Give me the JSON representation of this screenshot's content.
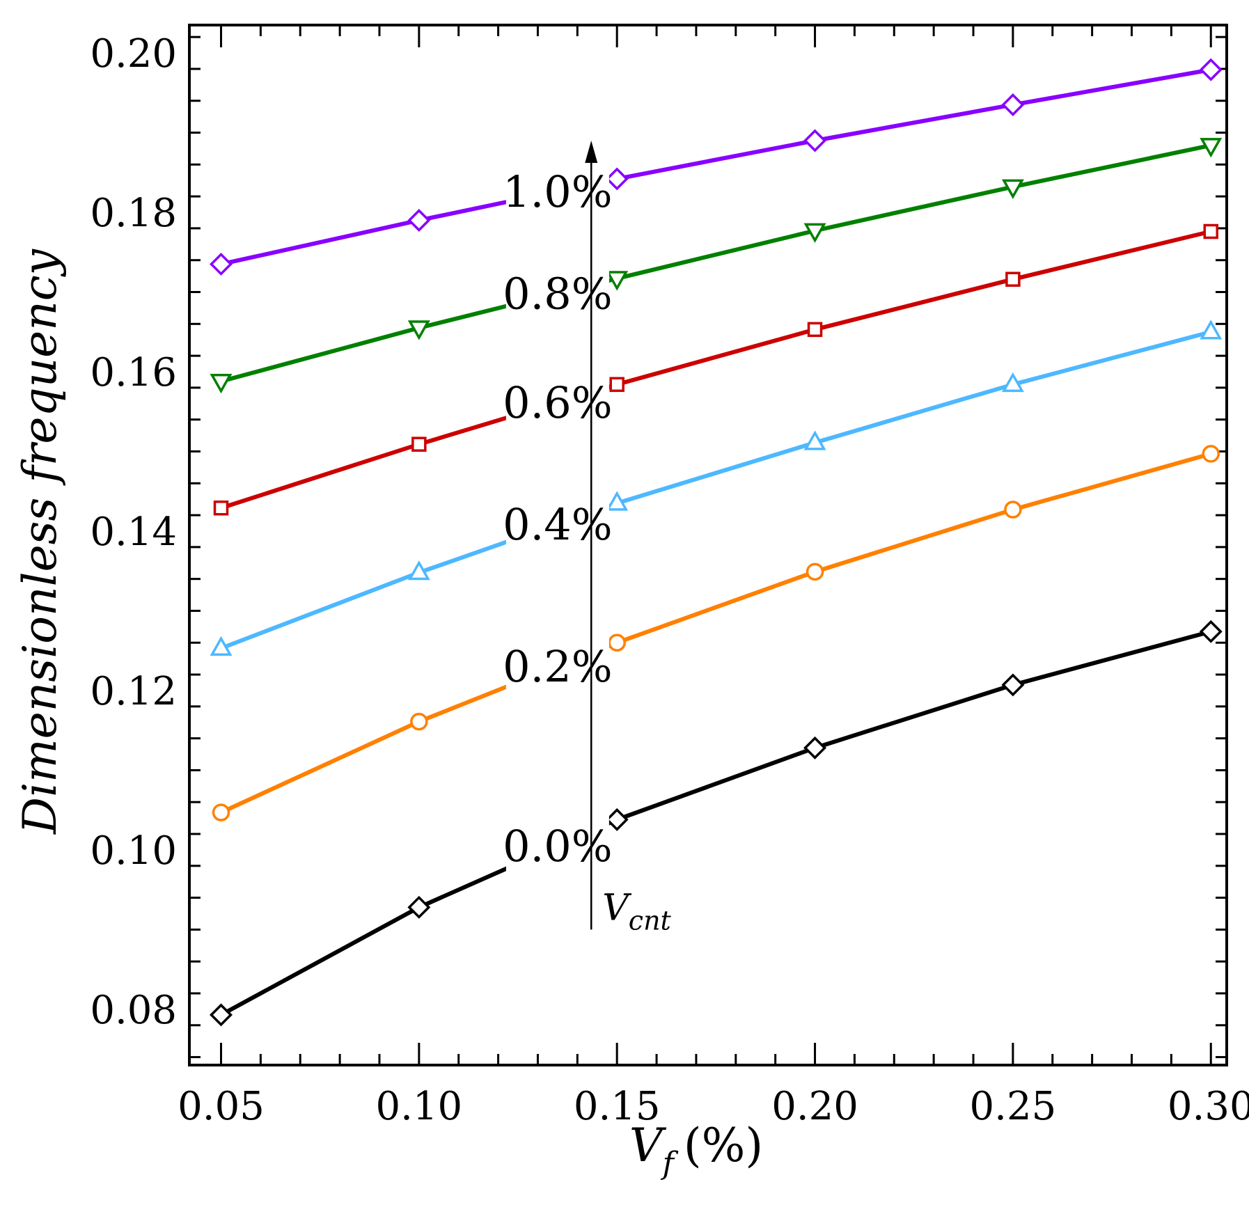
{
  "chart_data": {
    "type": "line",
    "xlabel_main": "V",
    "xlabel_sub": "f",
    "xlabel_unit": "(%)",
    "ylabel": "Dimensionless frequency",
    "x": [
      0.05,
      0.1,
      0.15,
      0.2,
      0.25,
      0.3
    ],
    "xlim": [
      0.042,
      0.304
    ],
    "ylim": [
      0.073,
      0.2035
    ],
    "xticks": [
      0.05,
      0.1,
      0.15,
      0.2,
      0.25,
      0.3
    ],
    "xtick_labels": [
      "0.05",
      "0.10",
      "0.15",
      "0.20",
      "0.25",
      "0.30"
    ],
    "yticks": [
      0.08,
      0.1,
      0.12,
      0.14,
      0.16,
      0.18,
      0.2
    ],
    "ytick_labels": [
      "0.08",
      "0.10",
      "0.12",
      "0.14",
      "0.16",
      "0.18",
      "0.20"
    ],
    "series": [
      {
        "name": "0.0%",
        "label": "0.0%",
        "color": "#000000",
        "marker": "diamond",
        "values": [
          0.0793,
          0.0928,
          0.1038,
          0.1128,
          0.1207,
          0.1274
        ]
      },
      {
        "name": "0.2%",
        "label": "0.2%",
        "color": "#ff8000",
        "marker": "circle",
        "values": [
          0.1047,
          0.1161,
          0.126,
          0.1349,
          0.1427,
          0.1497
        ]
      },
      {
        "name": "0.4%",
        "label": "0.4%",
        "color": "#4db8ff",
        "marker": "triangle-up",
        "values": [
          0.1253,
          0.1348,
          0.1435,
          0.1511,
          0.1584,
          0.165
        ]
      },
      {
        "name": "0.6%",
        "label": "0.6%",
        "color": "#cc0000",
        "marker": "square",
        "values": [
          0.1429,
          0.1509,
          0.1584,
          0.1653,
          0.1716,
          0.1776
        ]
      },
      {
        "name": "0.8%",
        "label": "0.8%",
        "color": "#008000",
        "marker": "triangle-down",
        "values": [
          0.1588,
          0.1655,
          0.1717,
          0.1777,
          0.1832,
          0.1884
        ]
      },
      {
        "name": "1.0%",
        "label": "1.0%",
        "color": "#8800ff",
        "marker": "diamond",
        "values": [
          0.1735,
          0.179,
          0.1842,
          0.189,
          0.1935,
          0.1979
        ]
      }
    ],
    "label_x": 0.135,
    "arrow": {
      "x": 0.1435,
      "y_start": 0.09,
      "y_end": 0.189,
      "label_main": "V",
      "label_sub": "cnt"
    }
  }
}
